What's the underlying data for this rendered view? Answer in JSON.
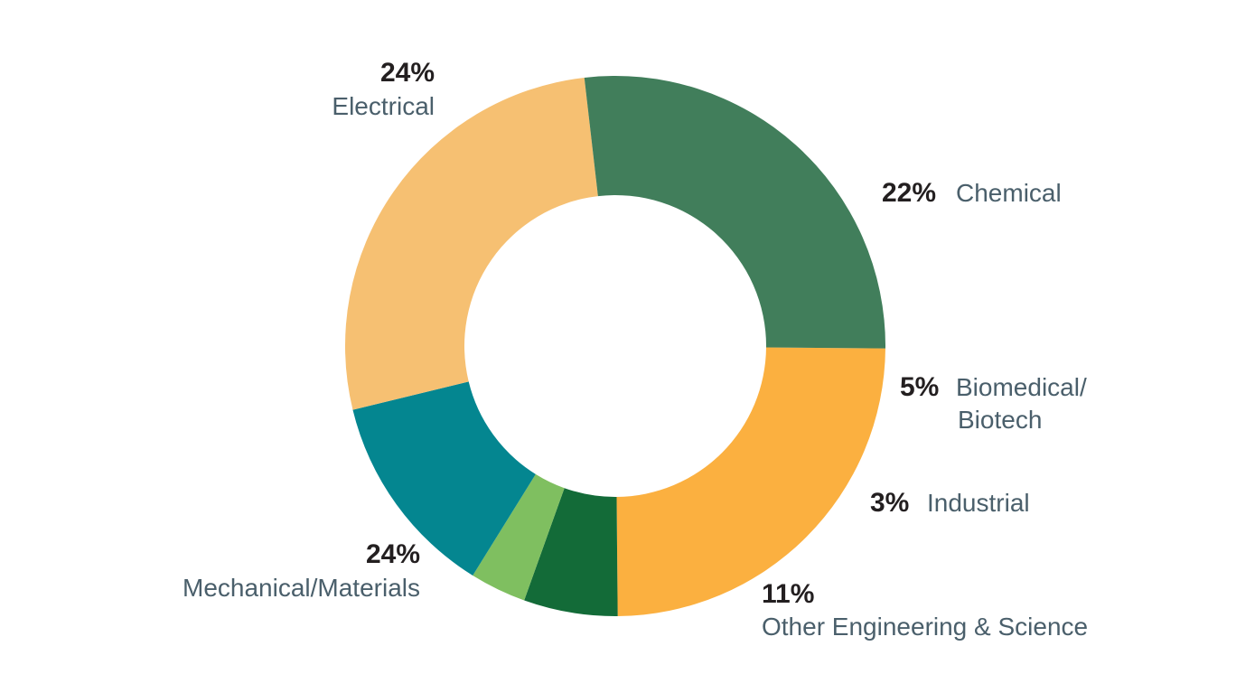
{
  "chart_data": {
    "type": "pie",
    "donut": true,
    "slices": [
      {
        "label": "Electrical",
        "value": 24,
        "value_label": "24%",
        "color": "#417e5b"
      },
      {
        "label": "Chemical",
        "value": 22,
        "value_label": "22%",
        "color": "#fbb040"
      },
      {
        "label": "Biomedical/Biotech",
        "value": 5,
        "value_label": "5%",
        "color": "#136b38"
      },
      {
        "label": "Industrial",
        "value": 3,
        "value_label": "3%",
        "color": "#7fbf60"
      },
      {
        "label": "Other Engineering & Science",
        "value": 11,
        "value_label": "11%",
        "color": "#048690"
      },
      {
        "label": "Mechanical/Materials",
        "value": 24,
        "value_label": "24%",
        "color": "#f6c072"
      }
    ]
  },
  "labels": {
    "electrical": {
      "pct": "24%",
      "name": "Electrical"
    },
    "chemical": {
      "pct": "22%",
      "name": "Chemical"
    },
    "biomedical": {
      "pct": "5%",
      "name_line1": "Biomedical/",
      "name_line2": "Biotech"
    },
    "industrial": {
      "pct": "3%",
      "name": "Industrial"
    },
    "other": {
      "pct": "11%",
      "name": "Other Engineering & Science"
    },
    "mechanical": {
      "pct": "24%",
      "name": "Mechanical/Materials"
    }
  }
}
